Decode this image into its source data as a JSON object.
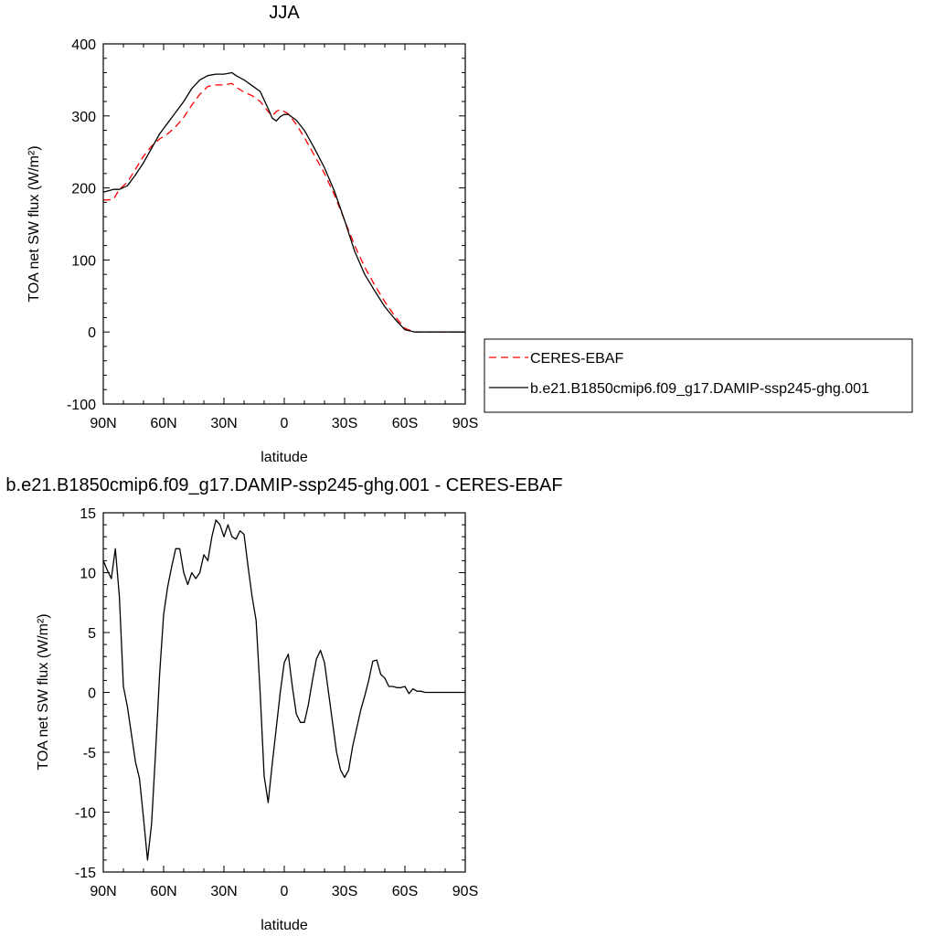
{
  "chart_data": [
    {
      "type": "line",
      "title": "JJA",
      "xlabel": "latitude",
      "ylabel": "TOA net SW flux (W/m²)",
      "xlim": [
        90,
        -90
      ],
      "ylim": [
        -100,
        400
      ],
      "xticks": [
        90,
        60,
        30,
        0,
        -30,
        -60,
        -90
      ],
      "xtick_labels": [
        "90N",
        "60N",
        "30N",
        "0",
        "30S",
        "60S",
        "90S"
      ],
      "yticks": [
        -100,
        0,
        100,
        200,
        300,
        400
      ],
      "ytick_labels": [
        "-100",
        "0",
        "100",
        "200",
        "300",
        "400"
      ],
      "grid": false,
      "legend": "right",
      "series": [
        {
          "name": "CERES-EBAF",
          "color": "#ff0000",
          "dash": "dashed",
          "x": [
            90,
            85,
            82,
            78,
            74,
            70,
            66,
            62,
            58,
            54,
            50,
            46,
            42,
            38,
            34,
            30,
            26,
            24,
            20,
            16,
            12,
            8,
            6,
            4,
            2,
            0,
            -2,
            -6,
            -10,
            -15,
            -20,
            -25,
            -30,
            -35,
            -40,
            -45,
            -50,
            -55,
            -60,
            -65,
            -70,
            -75,
            -80,
            -85,
            -90
          ],
          "y": [
            183,
            184,
            198,
            208,
            226,
            244,
            258,
            268,
            275,
            285,
            298,
            315,
            330,
            341,
            343,
            343,
            345,
            340,
            333,
            328,
            320,
            306,
            300,
            306,
            309,
            306,
            303,
            288,
            270,
            245,
            220,
            190,
            155,
            120,
            90,
            65,
            42,
            22,
            5,
            0,
            0,
            0,
            0,
            0,
            0
          ]
        },
        {
          "name": "b.e21.B1850cmip6.f09_g17.DAMIP-ssp245-ghg.001",
          "color": "#000000",
          "dash": "solid",
          "x": [
            90,
            85,
            82,
            78,
            74,
            70,
            66,
            62,
            58,
            54,
            50,
            46,
            42,
            38,
            34,
            30,
            26,
            24,
            20,
            16,
            12,
            8,
            6,
            4,
            2,
            0,
            -2,
            -6,
            -10,
            -15,
            -20,
            -25,
            -30,
            -35,
            -40,
            -45,
            -50,
            -55,
            -60,
            -65,
            -70,
            -75,
            -80,
            -85,
            -90
          ],
          "y": [
            194,
            198,
            198,
            203,
            218,
            235,
            255,
            275,
            290,
            305,
            320,
            338,
            350,
            356,
            358,
            358,
            360,
            356,
            350,
            342,
            334,
            310,
            297,
            293,
            299,
            302,
            302,
            294,
            280,
            255,
            228,
            195,
            155,
            112,
            80,
            57,
            35,
            18,
            3,
            0,
            0,
            0,
            0,
            0,
            0
          ]
        }
      ]
    },
    {
      "type": "line",
      "title": "b.e21.B1850cmip6.f09_g17.DAMIP-ssp245-ghg.001 - CERES-EBAF",
      "xlabel": "latitude",
      "ylabel": "TOA net SW flux (W/m²)",
      "xlim": [
        90,
        -90
      ],
      "ylim": [
        -15,
        15
      ],
      "xticks": [
        90,
        60,
        30,
        0,
        -30,
        -60,
        -90
      ],
      "xtick_labels": [
        "90N",
        "60N",
        "30N",
        "0",
        "30S",
        "60S",
        "90S"
      ],
      "yticks": [
        -15,
        -10,
        -5,
        0,
        5,
        10,
        15
      ],
      "ytick_labels": [
        "-15",
        "-10",
        "-5",
        "0",
        "5",
        "10",
        "15"
      ],
      "grid": false,
      "series": [
        {
          "color": "#000000",
          "x": [
            90,
            88,
            86,
            84,
            82,
            80,
            78,
            76,
            74,
            72,
            70,
            68,
            66,
            64,
            62,
            60,
            58,
            56,
            54,
            52,
            50,
            48,
            46,
            44,
            42,
            40,
            38,
            36,
            34,
            32,
            30,
            28,
            26,
            24,
            22,
            20,
            18,
            16,
            14,
            12,
            10,
            8,
            6,
            4,
            2,
            0,
            -2,
            -4,
            -6,
            -8,
            -10,
            -12,
            -14,
            -16,
            -18,
            -20,
            -22,
            -24,
            -26,
            -28,
            -30,
            -32,
            -34,
            -36,
            -38,
            -40,
            -42,
            -44,
            -46,
            -48,
            -50,
            -52,
            -54,
            -56,
            -58,
            -60,
            -62,
            -64,
            -66,
            -68,
            -70,
            -72,
            -74,
            -76,
            -78,
            -80,
            -82,
            -84,
            -86,
            -88,
            -90
          ],
          "y": [
            11,
            10.2,
            9.5,
            12,
            8,
            0.5,
            -1.2,
            -3.5,
            -5.8,
            -7.2,
            -10.5,
            -14,
            -11,
            -5,
            1.5,
            6.5,
            8.8,
            10.5,
            12,
            12,
            10,
            9,
            10,
            9.5,
            10,
            11.5,
            11,
            13,
            14.4,
            14,
            13,
            14,
            13,
            12.8,
            13.5,
            13.2,
            10.5,
            8,
            6,
            0,
            -7,
            -9.2,
            -6,
            -3,
            0,
            2.5,
            3.2,
            0.5,
            -1.8,
            -2.5,
            -2.5,
            -1,
            1,
            2.8,
            3.5,
            2.5,
            0,
            -2.5,
            -5,
            -6.5,
            -7.1,
            -6.5,
            -4.5,
            -3,
            -1.5,
            -0.3,
            1,
            2.6,
            2.7,
            1.5,
            1.2,
            0.5,
            0.5,
            0.4,
            0.4,
            0.5,
            -0.1,
            0.3,
            0.1,
            0.1,
            0,
            0,
            0,
            0,
            0,
            0,
            0,
            0,
            0,
            0,
            0
          ]
        }
      ]
    }
  ]
}
